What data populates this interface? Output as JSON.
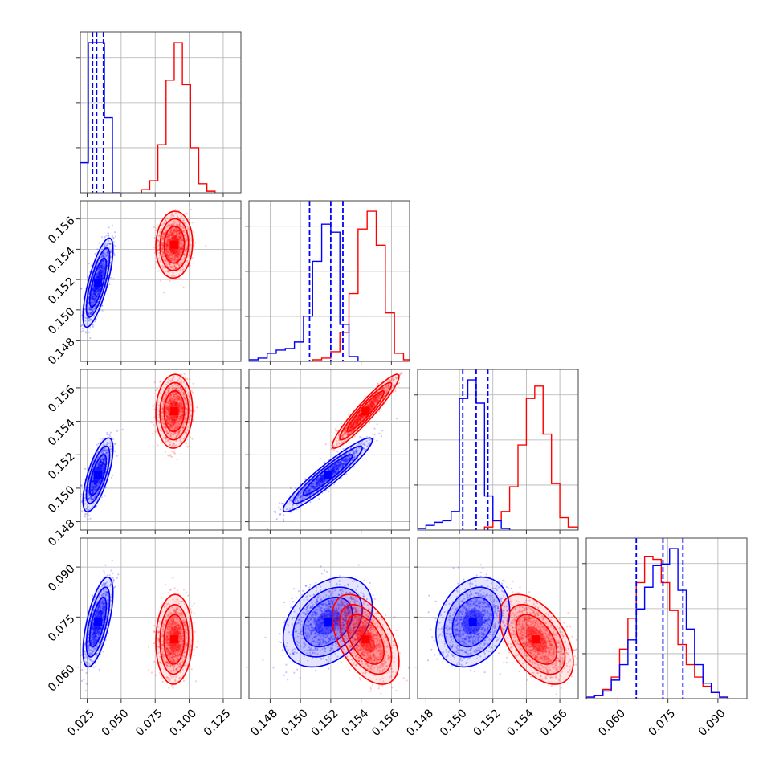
{
  "chart_data": {
    "type": "corner",
    "colors": {
      "blue": "#0000ff",
      "red": "#ff0000"
    },
    "grid": true,
    "params": [
      {
        "ticks": [
          0.025,
          0.05,
          0.075,
          0.1,
          0.125
        ],
        "tick_labels": [
          "0.025",
          "0.050",
          "0.075",
          "0.100",
          "0.125"
        ],
        "range": [
          0.02,
          0.138
        ]
      },
      {
        "ticks": [
          0.148,
          0.15,
          0.152,
          0.154,
          0.156
        ],
        "tick_labels": [
          "0.148",
          "0.150",
          "0.152",
          "0.154",
          "0.156"
        ],
        "range": [
          0.1466,
          0.1572
        ]
      },
      {
        "ticks": [
          0.148,
          0.15,
          0.152,
          0.154,
          0.156
        ],
        "tick_labels": [
          "0.148",
          "0.150",
          "0.152",
          "0.154",
          "0.156"
        ],
        "range": [
          0.1475,
          0.1571
        ]
      },
      {
        "ticks": [
          0.06,
          0.075,
          0.09
        ],
        "tick_labels": [
          "0.060",
          "0.075",
          "0.090"
        ],
        "range": [
          0.0505,
          0.0987
        ]
      }
    ],
    "series": [
      {
        "name": "",
        "color": "#0000ff",
        "means": [
          0.033,
          0.1518,
          0.1508,
          0.0735
        ],
        "sds": [
          0.0045,
          0.0012,
          0.0009,
          0.0055
        ],
        "corr": [
          [
            0,
            0.75,
            0.7,
            0.65
          ],
          [
            0.75,
            0,
            0.94,
            0.35
          ],
          [
            0.7,
            0.94,
            0,
            0.25
          ],
          [
            0.65,
            0.35,
            0.25,
            0
          ]
        ],
        "quantiles": [
          [
            0.029,
            0.032,
            0.037
          ],
          [
            0.1506,
            0.152,
            0.1528
          ],
          [
            0.1502,
            0.151,
            0.1517
          ],
          [
            0.0655,
            0.0735,
            0.0795
          ]
        ],
        "histograms": [
          {
            "bins": [
              0.02,
              0.0259,
              0.0318,
              0.0377,
              0.0436,
              0.0495
            ],
            "counts": [
              0.2,
              1.0,
              1.0,
              0.5,
              0.0
            ]
          },
          {
            "bins": [
              0.1466,
              0.1472,
              0.1478,
              0.1484,
              0.149,
              0.1496,
              0.1502,
              0.1508,
              0.1514,
              0.152,
              0.1526,
              0.1532,
              0.1538
            ],
            "counts": [
              0.01,
              0.02,
              0.05,
              0.07,
              0.08,
              0.12,
              0.28,
              0.62,
              0.85,
              0.8,
              0.23,
              0.03
            ]
          },
          {
            "bins": [
              0.1475,
              0.148,
              0.1485,
              0.149,
              0.1495,
              0.15,
              0.1505,
              0.151,
              0.1515,
              0.152,
              0.1525,
              0.153
            ],
            "counts": [
              0.01,
              0.03,
              0.05,
              0.06,
              0.12,
              0.85,
              0.97,
              0.82,
              0.22,
              0.06,
              0.01
            ]
          },
          {
            "bins": [
              0.0505,
              0.053,
              0.0555,
              0.058,
              0.0605,
              0.063,
              0.0655,
              0.068,
              0.0705,
              0.073,
              0.0755,
              0.078,
              0.0805,
              0.083,
              0.0855,
              0.088,
              0.0905,
              0.093
            ],
            "counts": [
              0.01,
              0.02,
              0.05,
              0.12,
              0.22,
              0.38,
              0.58,
              0.72,
              0.86,
              0.87,
              0.97,
              0.7,
              0.45,
              0.22,
              0.1,
              0.04,
              0.01
            ]
          }
        ]
      },
      {
        "name": "",
        "color": "#ff0000",
        "means": [
          0.089,
          0.1543,
          0.1546,
          0.0683
        ],
        "sds": [
          0.0055,
          0.0009,
          0.0009,
          0.0055
        ],
        "corr": [
          [
            0,
            0.05,
            0.05,
            0.05
          ],
          [
            0.05,
            0,
            0.94,
            -0.5
          ],
          [
            0.05,
            0.94,
            0,
            -0.5
          ],
          [
            0.05,
            -0.5,
            -0.5,
            0
          ]
        ],
        "quantiles": [],
        "histograms": [
          {
            "bins": [
              0.065,
              0.071,
              0.077,
              0.083,
              0.089,
              0.095,
              0.101,
              0.107,
              0.113,
              0.119
            ],
            "counts": [
              0.02,
              0.08,
              0.32,
              0.75,
              1.0,
              0.72,
              0.3,
              0.06,
              0.01
            ]
          },
          {
            "bins": [
              0.1508,
              0.1514,
              0.152,
              0.1526,
              0.1532,
              0.1538,
              0.1544,
              0.155,
              0.1556,
              0.1562,
              0.1568,
              0.1572
            ],
            "counts": [
              0.01,
              0.02,
              0.06,
              0.18,
              0.42,
              0.82,
              0.93,
              0.72,
              0.3,
              0.05,
              0.01
            ]
          },
          {
            "bins": [
              0.1515,
              0.152,
              0.1525,
              0.153,
              0.1535,
              0.154,
              0.1545,
              0.155,
              0.1555,
              0.156,
              0.1565,
              0.1571
            ],
            "counts": [
              0.02,
              0.06,
              0.12,
              0.28,
              0.55,
              0.85,
              0.93,
              0.62,
              0.3,
              0.08,
              0.02
            ]
          },
          {
            "bins": [
              0.0505,
              0.053,
              0.0555,
              0.058,
              0.0605,
              0.063,
              0.0655,
              0.068,
              0.0705,
              0.073,
              0.0755,
              0.078,
              0.0805,
              0.083,
              0.0855,
              0.088,
              0.0905,
              0.093
            ],
            "counts": [
              0.01,
              0.02,
              0.06,
              0.14,
              0.32,
              0.52,
              0.75,
              0.92,
              0.9,
              0.75,
              0.57,
              0.35,
              0.22,
              0.14,
              0.08,
              0.04,
              0.01
            ]
          }
        ]
      }
    ]
  }
}
